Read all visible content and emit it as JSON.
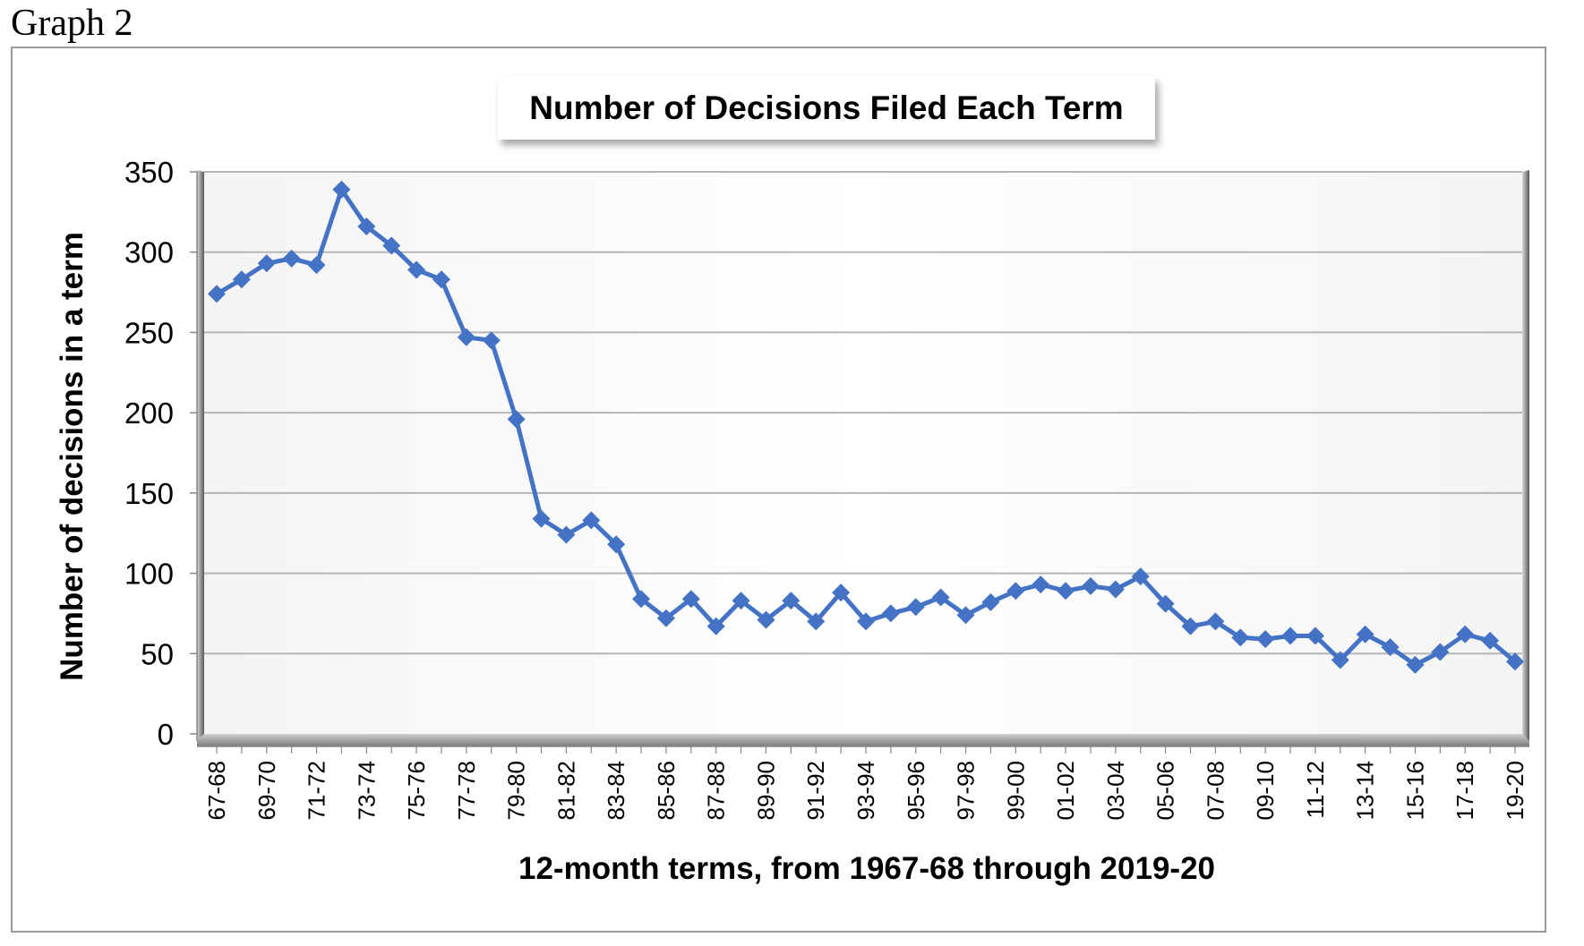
{
  "figure_label": "Graph 2",
  "chart_data": {
    "type": "line",
    "title": "Number of Decisions Filed Each Term",
    "xlabel": "12-month terms, from 1967-68 through 2019-20",
    "ylabel": "Number of decisions in a term",
    "ylim": [
      0,
      350
    ],
    "yticks": [
      0,
      50,
      100,
      150,
      200,
      250,
      300,
      350
    ],
    "grid": true,
    "legend": "none",
    "series_color": "#4472C4",
    "x": [
      "67-68",
      "68-69",
      "69-70",
      "70-71",
      "71-72",
      "72-73",
      "73-74",
      "74-75",
      "75-76",
      "76-77",
      "77-78",
      "78-79",
      "79-80",
      "80-81",
      "81-82",
      "82-83",
      "83-84",
      "84-85",
      "85-86",
      "86-87",
      "87-88",
      "88-89",
      "89-90",
      "90-91",
      "91-92",
      "92-93",
      "93-94",
      "94-95",
      "95-96",
      "96-97",
      "97-98",
      "98-99",
      "99-00",
      "00-01",
      "01-02",
      "02-03",
      "03-04",
      "04-05",
      "05-06",
      "06-07",
      "07-08",
      "08-09",
      "09-10",
      "10-11",
      "11-12",
      "12-13",
      "13-14",
      "14-15",
      "15-16",
      "16-17",
      "17-18",
      "18-19",
      "19-20"
    ],
    "x_tick_labels": [
      "67-68",
      "69-70",
      "71-72",
      "73-74",
      "75-76",
      "77-78",
      "79-80",
      "81-82",
      "83-84",
      "85-86",
      "87-88",
      "89-90",
      "91-92",
      "93-94",
      "95-96",
      "97-98",
      "99-00",
      "01-02",
      "03-04",
      "05-06",
      "07-08",
      "09-10",
      "11-12",
      "13-14",
      "15-16",
      "17-18",
      "19-20"
    ],
    "values": [
      274,
      283,
      293,
      296,
      292,
      339,
      316,
      304,
      289,
      283,
      247,
      245,
      196,
      134,
      124,
      133,
      118,
      84,
      72,
      84,
      67,
      83,
      71,
      83,
      70,
      88,
      70,
      75,
      79,
      85,
      74,
      82,
      89,
      93,
      89,
      92,
      90,
      98,
      81,
      67,
      70,
      60,
      59,
      61,
      61,
      46,
      62,
      54,
      43,
      51,
      62,
      58,
      45
    ]
  }
}
